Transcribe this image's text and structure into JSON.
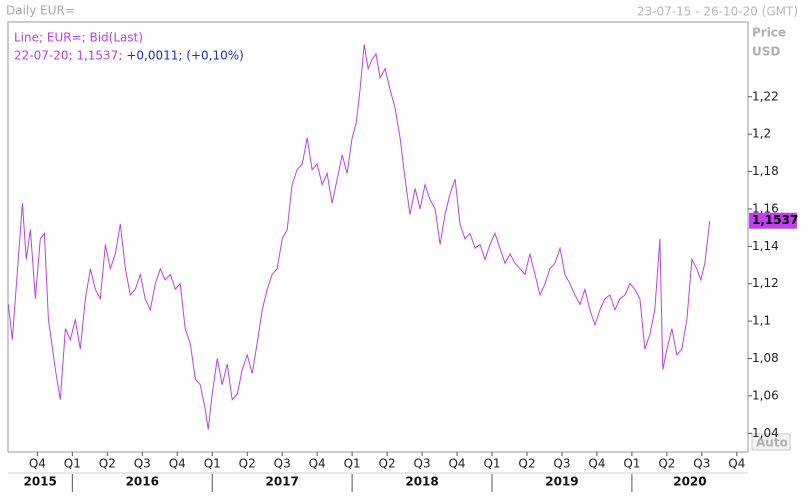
{
  "chart_data": {
    "type": "line",
    "title": "Daily EUR=",
    "date_range": "23-07-15 - 26-10-20 (GMT)",
    "y_axis_label": "Price",
    "y_axis_unit": "USD",
    "info_price": "22-07-20; 1,1537;",
    "info_change": "+0,0011; (+0,10%)",
    "auto_button": "Auto",
    "grid": false,
    "xlim": [
      2015.54,
      2020.83
    ],
    "ylim": [
      1.03,
      1.26
    ],
    "yticks": [
      {
        "value": 1.04,
        "label": "1,04"
      },
      {
        "value": 1.06,
        "label": "1,06"
      },
      {
        "value": 1.08,
        "label": "1,08"
      },
      {
        "value": 1.1,
        "label": "1,1"
      },
      {
        "value": 1.12,
        "label": "1,12"
      },
      {
        "value": 1.14,
        "label": "1,14"
      },
      {
        "value": 1.16,
        "label": "1,16"
      },
      {
        "value": 1.18,
        "label": "1,18"
      },
      {
        "value": 1.2,
        "label": "1,2"
      },
      {
        "value": 1.22,
        "label": "1,22"
      }
    ],
    "xticks": [
      {
        "value": 2015.75,
        "label": "Q4"
      },
      {
        "value": 2016,
        "label": "Q1"
      },
      {
        "value": 2016.25,
        "label": "Q2"
      },
      {
        "value": 2016.5,
        "label": "Q3"
      },
      {
        "value": 2016.75,
        "label": "Q4"
      },
      {
        "value": 2017,
        "label": "Q1"
      },
      {
        "value": 2017.25,
        "label": "Q2"
      },
      {
        "value": 2017.5,
        "label": "Q3"
      },
      {
        "value": 2017.75,
        "label": "Q4"
      },
      {
        "value": 2018,
        "label": "Q1"
      },
      {
        "value": 2018.25,
        "label": "Q2"
      },
      {
        "value": 2018.5,
        "label": "Q3"
      },
      {
        "value": 2018.75,
        "label": "Q4"
      },
      {
        "value": 2019,
        "label": "Q1"
      },
      {
        "value": 2019.25,
        "label": "Q2"
      },
      {
        "value": 2019.5,
        "label": "Q3"
      },
      {
        "value": 2019.75,
        "label": "Q4"
      },
      {
        "value": 2020,
        "label": "Q1"
      },
      {
        "value": 2020.25,
        "label": "Q2"
      },
      {
        "value": 2020.5,
        "label": "Q3"
      },
      {
        "value": 2020.75,
        "label": "Q4"
      }
    ],
    "year_ticks": [
      2015,
      2016,
      2017,
      2018,
      2019,
      2020
    ],
    "last_price": {
      "value": 1.1537,
      "label": "1,1537"
    },
    "x": [
      2015.543,
      2015.571,
      2015.643,
      2015.671,
      2015.7,
      2015.736,
      2015.771,
      2015.8,
      2015.829,
      2015.879,
      2015.914,
      2015.95,
      2015.986,
      2016.021,
      2016.057,
      2016.093,
      2016.129,
      2016.164,
      2016.2,
      2016.236,
      2016.271,
      2016.307,
      2016.343,
      2016.379,
      2016.414,
      2016.45,
      2016.486,
      2016.521,
      2016.557,
      2016.593,
      2016.629,
      2016.664,
      2016.7,
      2016.736,
      2016.771,
      2016.807,
      2016.843,
      2016.879,
      2016.914,
      2016.95,
      2016.971,
      2017.0,
      2017.036,
      2017.071,
      2017.107,
      2017.143,
      2017.179,
      2017.214,
      2017.25,
      2017.286,
      2017.321,
      2017.357,
      2017.393,
      2017.429,
      2017.464,
      2017.5,
      2017.536,
      2017.571,
      2017.607,
      2017.643,
      2017.679,
      2017.714,
      2017.75,
      2017.786,
      2017.821,
      2017.857,
      2017.893,
      2017.929,
      2017.964,
      2018.0,
      2018.029,
      2018.057,
      2018.086,
      2018.114,
      2018.143,
      2018.171,
      2018.2,
      2018.236,
      2018.271,
      2018.307,
      2018.343,
      2018.379,
      2018.414,
      2018.45,
      2018.486,
      2018.521,
      2018.557,
      2018.593,
      2018.629,
      2018.664,
      2018.7,
      2018.736,
      2018.771,
      2018.807,
      2018.843,
      2018.879,
      2018.914,
      2018.95,
      2018.986,
      2019.021,
      2019.057,
      2019.093,
      2019.129,
      2019.164,
      2019.2,
      2019.236,
      2019.271,
      2019.307,
      2019.343,
      2019.379,
      2019.414,
      2019.45,
      2019.486,
      2019.521,
      2019.557,
      2019.593,
      2019.629,
      2019.664,
      2019.7,
      2019.736,
      2019.771,
      2019.807,
      2019.843,
      2019.879,
      2019.914,
      2019.95,
      2019.986,
      2020.021,
      2020.057,
      2020.093,
      2020.129,
      2020.164,
      2020.2,
      2020.221,
      2020.25,
      2020.286,
      2020.321,
      2020.357,
      2020.393,
      2020.429,
      2020.464,
      2020.493,
      2020.521,
      2020.557
    ],
    "series": [
      {
        "name": "Line; EUR=; Bid(Last)",
        "color": "#c23ef0",
        "values": [
          1.109,
          1.09,
          1.163,
          1.133,
          1.149,
          1.112,
          1.144,
          1.147,
          1.101,
          1.074,
          1.058,
          1.096,
          1.09,
          1.101,
          1.085,
          1.112,
          1.128,
          1.117,
          1.112,
          1.141,
          1.128,
          1.136,
          1.152,
          1.128,
          1.114,
          1.117,
          1.125,
          1.112,
          1.106,
          1.12,
          1.128,
          1.122,
          1.125,
          1.117,
          1.12,
          1.096,
          1.088,
          1.069,
          1.066,
          1.053,
          1.042,
          1.061,
          1.08,
          1.066,
          1.077,
          1.058,
          1.061,
          1.074,
          1.082,
          1.072,
          1.088,
          1.106,
          1.117,
          1.125,
          1.128,
          1.144,
          1.149,
          1.173,
          1.181,
          1.184,
          1.198,
          1.181,
          1.184,
          1.173,
          1.179,
          1.163,
          1.176,
          1.189,
          1.179,
          1.198,
          1.206,
          1.224,
          1.248,
          1.235,
          1.24,
          1.243,
          1.23,
          1.235,
          1.224,
          1.214,
          1.198,
          1.176,
          1.157,
          1.171,
          1.16,
          1.173,
          1.165,
          1.16,
          1.141,
          1.157,
          1.168,
          1.176,
          1.152,
          1.144,
          1.147,
          1.139,
          1.141,
          1.133,
          1.141,
          1.147,
          1.139,
          1.131,
          1.136,
          1.131,
          1.128,
          1.125,
          1.136,
          1.125,
          1.114,
          1.12,
          1.128,
          1.131,
          1.139,
          1.125,
          1.12,
          1.114,
          1.109,
          1.117,
          1.106,
          1.098,
          1.106,
          1.112,
          1.114,
          1.106,
          1.112,
          1.114,
          1.12,
          1.117,
          1.112,
          1.085,
          1.093,
          1.106,
          1.144,
          1.074,
          1.085,
          1.096,
          1.082,
          1.085,
          1.101,
          1.133,
          1.128,
          1.122,
          1.131,
          1.1537
        ]
      }
    ]
  }
}
